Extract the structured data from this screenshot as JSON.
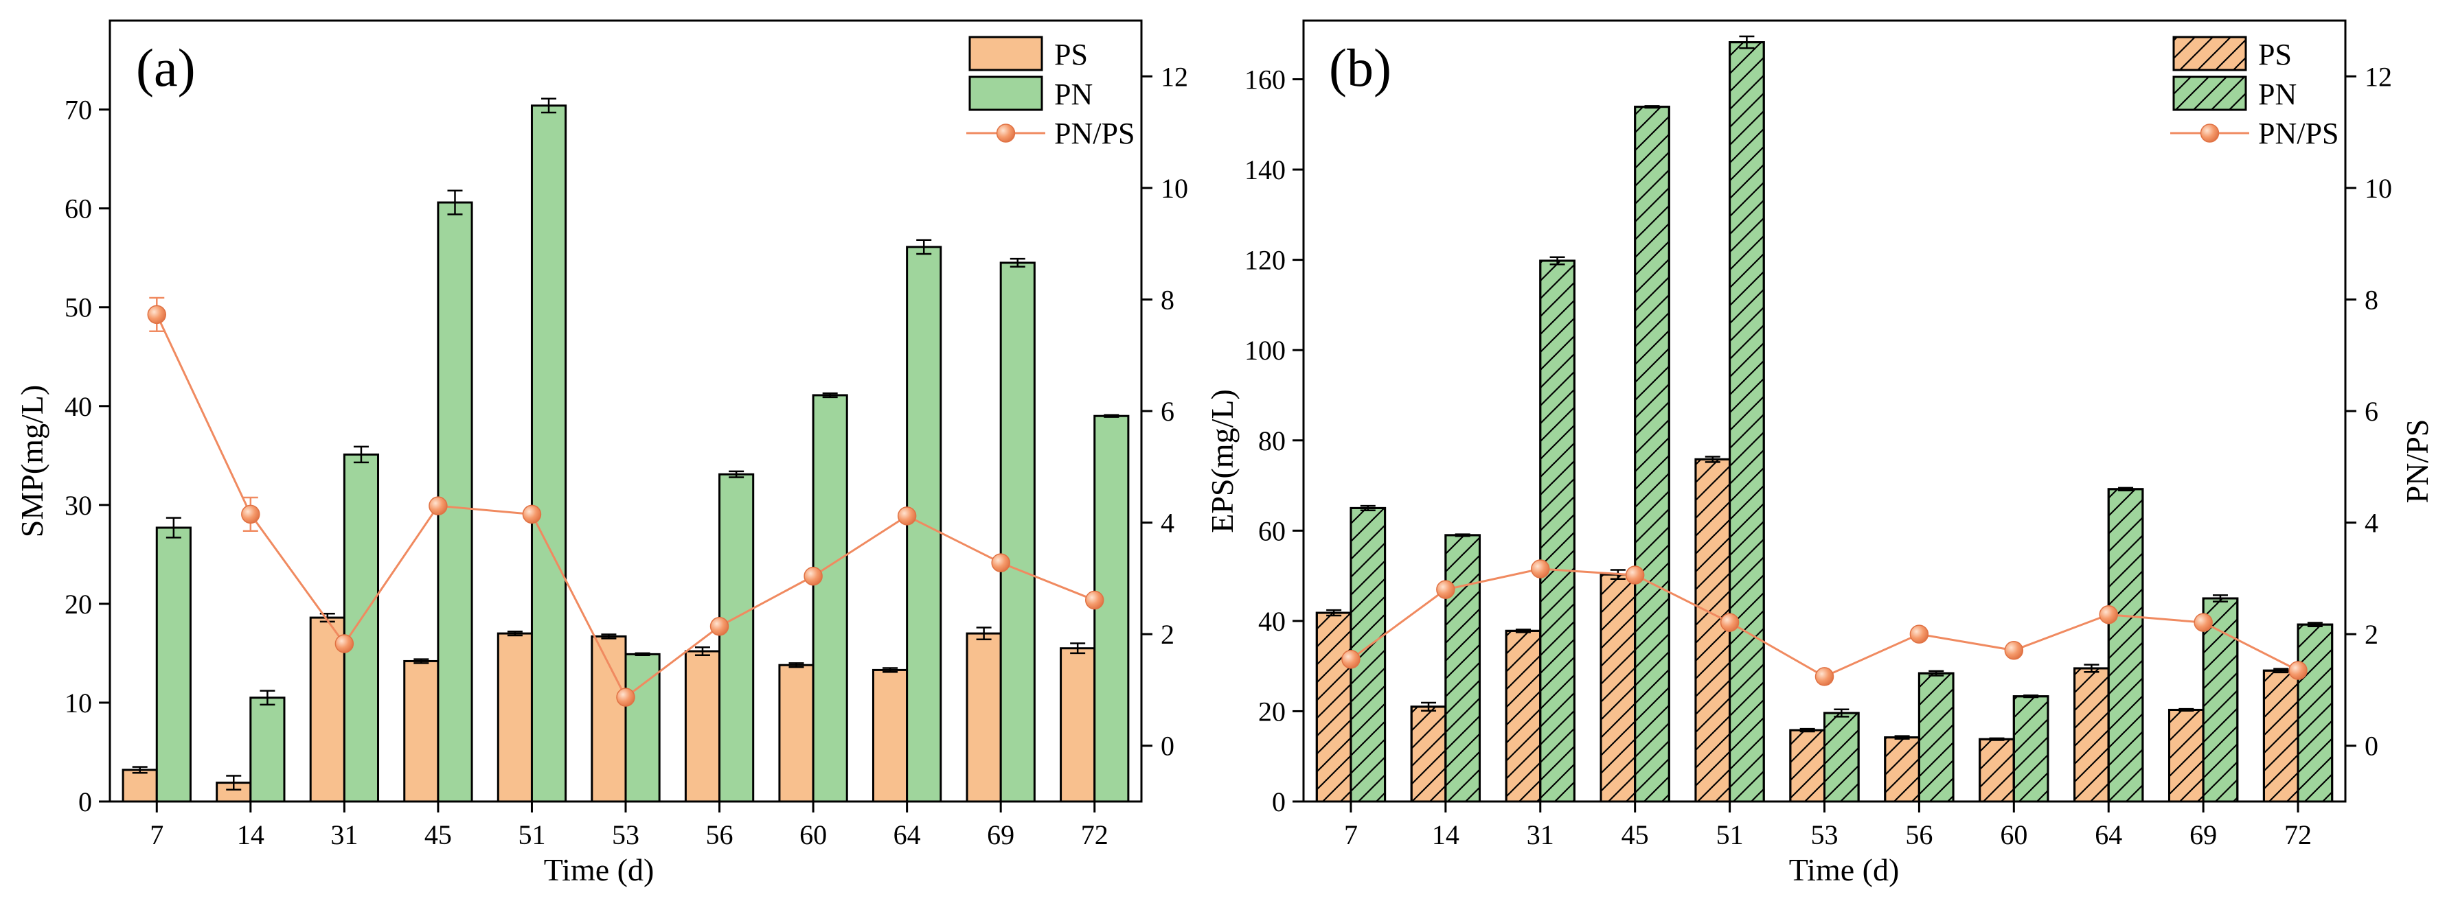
{
  "chart_data": [
    {
      "type": "bar",
      "panel_label": "(a)",
      "categories": [
        "7",
        "14",
        "31",
        "45",
        "51",
        "53",
        "56",
        "60",
        "64",
        "69",
        "72"
      ],
      "xlabel": "Time (d)",
      "ylabel": "SMP(mg/L)",
      "y2label": "",
      "ylim": [
        0,
        79
      ],
      "yticks": [
        "0",
        "10",
        "20",
        "30",
        "40",
        "50",
        "60",
        "70"
      ],
      "y2lim": [
        -1,
        13
      ],
      "y2ticks": [
        "0",
        "2",
        "4",
        "6",
        "8",
        "10",
        "12"
      ],
      "hatched": false,
      "legend_position": "top-right",
      "series": [
        {
          "name": "PS",
          "kind": "bar",
          "color": "#f8c08e",
          "values": [
            3.2,
            1.9,
            18.6,
            14.2,
            17.0,
            16.7,
            15.2,
            13.8,
            13.3,
            17.0,
            15.5
          ],
          "errors": [
            0.3,
            0.7,
            0.4,
            0.2,
            0.2,
            0.2,
            0.4,
            0.2,
            0.2,
            0.6,
            0.5
          ]
        },
        {
          "name": "PN",
          "kind": "bar",
          "color": "#9fd59c",
          "values": [
            27.7,
            10.5,
            35.1,
            60.6,
            70.4,
            14.9,
            33.1,
            41.1,
            56.1,
            54.5,
            39.0
          ],
          "errors": [
            1.0,
            0.7,
            0.8,
            1.2,
            0.7,
            0.1,
            0.3,
            0.2,
            0.7,
            0.4,
            0.1
          ]
        },
        {
          "name": "PN/PS",
          "kind": "line",
          "axis": "right",
          "color": "#f08a60",
          "values": [
            7.73,
            4.15,
            1.83,
            4.3,
            4.15,
            0.87,
            2.14,
            3.04,
            4.12,
            3.28,
            2.61
          ],
          "errors": [
            0.3,
            0.3,
            0,
            0,
            0,
            0,
            0,
            0,
            0,
            0,
            0
          ]
        }
      ]
    },
    {
      "type": "bar",
      "panel_label": "(b)",
      "categories": [
        "7",
        "14",
        "31",
        "45",
        "51",
        "53",
        "56",
        "60",
        "64",
        "69",
        "72"
      ],
      "xlabel": "Time (d)",
      "ylabel": "EPS(mg/L)",
      "y2label": "PN/PS",
      "ylim": [
        0,
        173
      ],
      "yticks": [
        "0",
        "20",
        "40",
        "60",
        "80",
        "100",
        "120",
        "140",
        "160"
      ],
      "y2lim": [
        -1,
        13
      ],
      "y2ticks": [
        "0",
        "2",
        "4",
        "6",
        "8",
        "10",
        "12"
      ],
      "hatched": true,
      "legend_position": "top-right",
      "series": [
        {
          "name": "PS",
          "kind": "bar",
          "color": "#f8c08e",
          "values": [
            41.8,
            21.0,
            37.8,
            50.3,
            75.8,
            15.8,
            14.2,
            13.8,
            29.5,
            20.3,
            29.0
          ],
          "errors": [
            0.6,
            0.9,
            0.3,
            1.0,
            0.6,
            0.3,
            0.3,
            0.2,
            0.8,
            0.2,
            0.4
          ]
        },
        {
          "name": "PN",
          "kind": "bar",
          "color": "#9fd59c",
          "values": [
            65.0,
            59.0,
            119.8,
            153.9,
            168.2,
            19.6,
            28.4,
            23.3,
            69.2,
            45.0,
            39.2
          ],
          "errors": [
            0.5,
            0.2,
            0.8,
            0.2,
            1.3,
            0.8,
            0.5,
            0.2,
            0.3,
            0.7,
            0.4
          ]
        },
        {
          "name": "PN/PS",
          "kind": "line",
          "axis": "right",
          "color": "#f08a60",
          "values": [
            1.55,
            2.8,
            3.17,
            3.06,
            2.21,
            1.24,
            2.0,
            1.71,
            2.35,
            2.21,
            1.35
          ],
          "errors": [
            0,
            0,
            0,
            0,
            0,
            0,
            0,
            0,
            0,
            0,
            0
          ]
        }
      ]
    }
  ]
}
